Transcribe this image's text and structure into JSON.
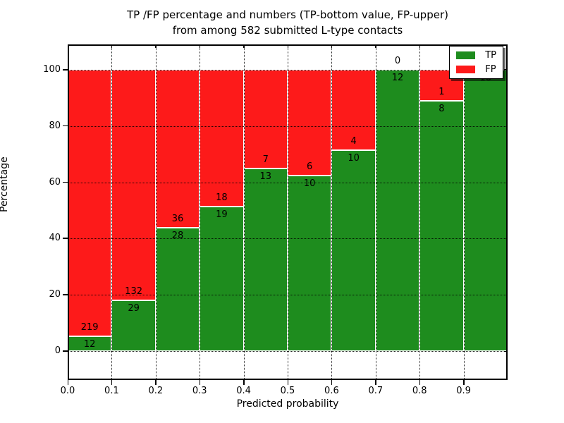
{
  "title": {
    "line1": "TP /FP percentage and numbers (TP-bottom value, FP-upper)",
    "line2": "from among 582 submitted L-type contacts"
  },
  "chart_data": {
    "type": "bar",
    "stacked": true,
    "normalized_to_percent": true,
    "title": "TP /FP percentage and numbers (TP-bottom value, FP-upper) from among 582 submitted L-type contacts",
    "xlabel": "Predicted probability",
    "ylabel": "Percentage",
    "total_contacts": 582,
    "categories": [
      "0.0",
      "0.1",
      "0.2",
      "0.3",
      "0.4",
      "0.5",
      "0.6",
      "0.7",
      "0.8",
      "0.9"
    ],
    "bin_width": 0.1,
    "series": [
      {
        "name": "TP",
        "color": "#1e8c1e",
        "values": [
          12,
          29,
          28,
          19,
          13,
          10,
          10,
          12,
          8,
          18
        ]
      },
      {
        "name": "FP",
        "color": "#fd1a1a",
        "values": [
          219,
          132,
          36,
          18,
          7,
          6,
          4,
          0,
          1,
          0
        ]
      }
    ],
    "tp_percent_per_bin": [
      5.19,
      18.01,
      43.75,
      51.35,
      65.0,
      62.5,
      71.43,
      100.0,
      88.89,
      100.0
    ],
    "yticks": [
      "0",
      "20",
      "40",
      "60",
      "80",
      "100"
    ],
    "xticks": [
      "0.0",
      "0.1",
      "0.2",
      "0.3",
      "0.4",
      "0.5",
      "0.6",
      "0.7",
      "0.8",
      "0.9"
    ],
    "ylim": [
      -10.5,
      109.3
    ],
    "xlim": [
      0.0,
      1.0
    ],
    "grid": "dotted",
    "legend": {
      "position": "upper right",
      "entries": [
        "TP",
        "FP"
      ]
    }
  },
  "colors": {
    "tp": "#1e8c1e",
    "fp": "#fd1a1a",
    "background": "#ffffff",
    "grid": "#000000",
    "bar_edge": "#ffffff"
  }
}
